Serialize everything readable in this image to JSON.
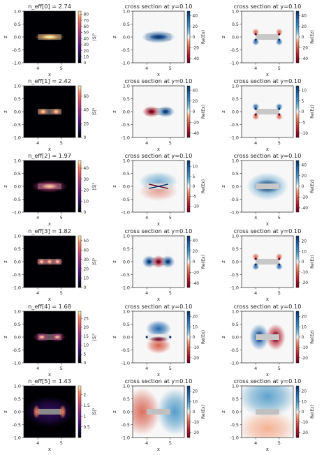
{
  "chart_data": [
    {
      "type": "heatmap",
      "title": "n_eff[0] = 2.74",
      "xlabel": "x",
      "ylabel": "z",
      "colorbar_label": "|S|²",
      "colormap": "magma",
      "xticks": [
        4,
        5
      ],
      "yticks": [
        1.0,
        0.5,
        0.0,
        -0.5,
        -1.0
      ],
      "cbar_ticks": [
        0,
        10,
        20,
        30,
        40,
        50,
        60,
        70,
        80
      ],
      "cbar_range": [
        0,
        85
      ],
      "mode": "fund"
    },
    {
      "type": "heatmap",
      "title": "cross section at y=0.10",
      "xlabel": "x",
      "ylabel": "z",
      "colorbar_label": "Re(Ex)",
      "colormap": "RdBu",
      "xticks": [
        4,
        5
      ],
      "yticks": [
        1.0,
        0.5,
        0.0,
        -0.5,
        -1.0
      ],
      "cbar_ticks": [
        40,
        20,
        0,
        -20,
        -40
      ],
      "cbar_range": [
        -48,
        48
      ],
      "mode": "ex_fund"
    },
    {
      "type": "heatmap",
      "title": "cross section at y=0.10",
      "xlabel": "x",
      "ylabel": "z",
      "colorbar_label": "Re(Ez)",
      "colormap": "RdBu",
      "xticks": [
        4,
        5
      ],
      "yticks": [
        1.0,
        0.5,
        0.0,
        -0.5,
        -1.0
      ],
      "cbar_ticks": [
        40,
        20,
        0,
        -20,
        -40
      ],
      "cbar_range": [
        -48,
        48
      ],
      "mode": "ez_corners"
    },
    {
      "type": "heatmap",
      "title": "n_eff[1] = 2.42",
      "xlabel": "x",
      "ylabel": "z",
      "colorbar_label": "|S|²",
      "colormap": "magma",
      "xticks": [
        4,
        5
      ],
      "yticks": [
        1.0,
        0.5,
        0.0,
        -0.5,
        -1.0
      ],
      "cbar_ticks": [
        0,
        20,
        40,
        60
      ],
      "cbar_range": [
        0,
        75
      ],
      "mode": "two"
    },
    {
      "type": "heatmap",
      "title": "cross section at y=0.10",
      "xlabel": "x",
      "ylabel": "z",
      "colorbar_label": "Re(Ex)",
      "colormap": "RdBu",
      "xticks": [
        4,
        5
      ],
      "yticks": [
        1.0,
        0.5,
        0.0,
        -0.5,
        -1.0
      ],
      "cbar_ticks": [
        40,
        20,
        0,
        -20,
        -40
      ],
      "cbar_range": [
        -48,
        48
      ],
      "mode": "ex_two"
    },
    {
      "type": "heatmap",
      "title": "cross section at y=0.10",
      "xlabel": "x",
      "ylabel": "z",
      "colorbar_label": "Re(Ez)",
      "colormap": "RdBu",
      "xticks": [
        4,
        5
      ],
      "yticks": [
        1.0,
        0.5,
        0.0,
        -0.5,
        -1.0
      ],
      "cbar_ticks": [
        10,
        5,
        0,
        -5,
        -10
      ],
      "cbar_range": [
        -12,
        12
      ],
      "mode": "ez_corners2"
    },
    {
      "type": "heatmap",
      "title": "n_eff[2] = 1.97",
      "xlabel": "x",
      "ylabel": "z",
      "colorbar_label": "|S|²",
      "colormap": "magma",
      "xticks": [
        4,
        5
      ],
      "yticks": [
        1.0,
        0.5,
        0.0,
        -0.5,
        -1.0
      ],
      "cbar_ticks": [
        0,
        10,
        20,
        30,
        40
      ],
      "cbar_range": [
        0,
        47
      ],
      "mode": "fund_wide"
    },
    {
      "type": "heatmap",
      "title": "cross section at y=0.10",
      "xlabel": "x",
      "ylabel": "z",
      "colorbar_label": "Re(Ex)",
      "colormap": "RdBu",
      "xticks": [
        4,
        5
      ],
      "yticks": [
        1.0,
        0.5,
        0.0,
        -0.5,
        -1.0
      ],
      "cbar_ticks": [
        10,
        5,
        0,
        -5,
        -10
      ],
      "cbar_range": [
        -13,
        13
      ],
      "mode": "ex_edges"
    },
    {
      "type": "heatmap",
      "title": "cross section at y=0.10",
      "xlabel": "x",
      "ylabel": "z",
      "colorbar_label": "Re(Ez)",
      "colormap": "RdBu",
      "xticks": [
        4,
        5
      ],
      "yticks": [
        1.0,
        0.5,
        0.0,
        -0.5,
        -1.0
      ],
      "cbar_ticks": [
        40,
        20,
        0,
        -20,
        -40
      ],
      "cbar_range": [
        -48,
        48
      ],
      "mode": "ez_fund"
    },
    {
      "type": "heatmap",
      "title": "n_eff[3] = 1.82",
      "xlabel": "x",
      "ylabel": "z",
      "colorbar_label": "|S|²",
      "colormap": "magma",
      "xticks": [
        4,
        5
      ],
      "yticks": [
        1.0,
        0.5,
        0.0,
        -0.5,
        -1.0
      ],
      "cbar_ticks": [
        0,
        10,
        20,
        30,
        40,
        50
      ],
      "cbar_range": [
        0,
        55
      ],
      "mode": "three"
    },
    {
      "type": "heatmap",
      "title": "cross section at y=0.10",
      "xlabel": "x",
      "ylabel": "z",
      "colorbar_label": "Re(Ex)",
      "colormap": "RdBu",
      "xticks": [
        4,
        5
      ],
      "yticks": [
        1.0,
        0.5,
        0.0,
        -0.5,
        -1.0
      ],
      "cbar_ticks": [
        40,
        20,
        0,
        -20,
        -40
      ],
      "cbar_range": [
        -48,
        48
      ],
      "mode": "ex_three"
    },
    {
      "type": "heatmap",
      "title": "cross section at y=0.10",
      "xlabel": "x",
      "ylabel": "z",
      "colorbar_label": "Re(Ez)",
      "colormap": "RdBu",
      "xticks": [
        4,
        5
      ],
      "yticks": [
        1.0,
        0.5,
        0.0,
        -0.5,
        -1.0
      ],
      "cbar_ticks": [
        20,
        10,
        0,
        -10,
        -20
      ],
      "cbar_range": [
        -25,
        25
      ],
      "mode": "ez_corners"
    },
    {
      "type": "heatmap",
      "title": "n_eff[4] = 1.68",
      "xlabel": "x",
      "ylabel": "z",
      "colorbar_label": "|S|²",
      "colormap": "magma",
      "xticks": [
        4,
        5
      ],
      "yticks": [
        1.0,
        0.5,
        0.0,
        -0.5,
        -1.0
      ],
      "cbar_ticks": [
        0,
        5,
        10,
        15,
        20,
        25
      ],
      "cbar_range": [
        0,
        29
      ],
      "mode": "two_wide"
    },
    {
      "type": "heatmap",
      "title": "cross section at y=0.10",
      "xlabel": "x",
      "ylabel": "z",
      "colorbar_label": "Re(Ex)",
      "colormap": "RdBu",
      "xticks": [
        4,
        5
      ],
      "yticks": [
        1.0,
        0.5,
        0.0,
        -0.5,
        -1.0
      ],
      "cbar_ticks": [
        20,
        10,
        0,
        -10,
        -20
      ],
      "cbar_range": [
        -25,
        25
      ],
      "mode": "ex_quad"
    },
    {
      "type": "heatmap",
      "title": "cross section at y=0.10",
      "xlabel": "x",
      "ylabel": "z",
      "colorbar_label": "Re(Ez)",
      "colormap": "RdBu",
      "xticks": [
        4,
        5
      ],
      "yticks": [
        1.0,
        0.5,
        0.0,
        -0.5,
        -1.0
      ],
      "cbar_ticks": [
        20,
        10,
        0,
        -10,
        -20
      ],
      "cbar_range": [
        -25,
        25
      ],
      "mode": "ez_lr"
    },
    {
      "type": "heatmap",
      "title": "n_eff[5] = 1.43",
      "xlabel": "x",
      "ylabel": "z",
      "colorbar_label": "|S|²",
      "colormap": "magma",
      "xticks": [
        4,
        5
      ],
      "yticks": [
        1.0,
        0.5,
        0.0,
        -0.5,
        -1.0
      ],
      "cbar_ticks": [
        0.5,
        1.0,
        1.5,
        2.0
      ],
      "cbar_range": [
        0,
        2.4
      ],
      "mode": "edge_glow"
    },
    {
      "type": "heatmap",
      "title": "cross section at y=0.10",
      "xlabel": "x",
      "ylabel": "z",
      "colorbar_label": "Re(Ex)",
      "colormap": "RdBu",
      "xticks": [
        4,
        5
      ],
      "yticks": [
        1.0,
        0.5,
        0.0,
        -0.5,
        -1.0
      ],
      "cbar_ticks": [
        20,
        10,
        0,
        -10,
        -20
      ],
      "cbar_range": [
        -25,
        25
      ],
      "mode": "ex_broad"
    },
    {
      "type": "heatmap",
      "title": "cross section at y=0.10",
      "xlabel": "x",
      "ylabel": "z",
      "colorbar_label": "Re(Ez)",
      "colormap": "RdBu",
      "xticks": [
        4,
        5
      ],
      "yticks": [
        1.0,
        0.5,
        0.0,
        -0.5,
        -1.0
      ],
      "cbar_ticks": [
        20,
        10,
        0,
        -10,
        -20
      ],
      "cbar_range": [
        -25,
        25
      ],
      "mode": "ez_broad"
    }
  ]
}
